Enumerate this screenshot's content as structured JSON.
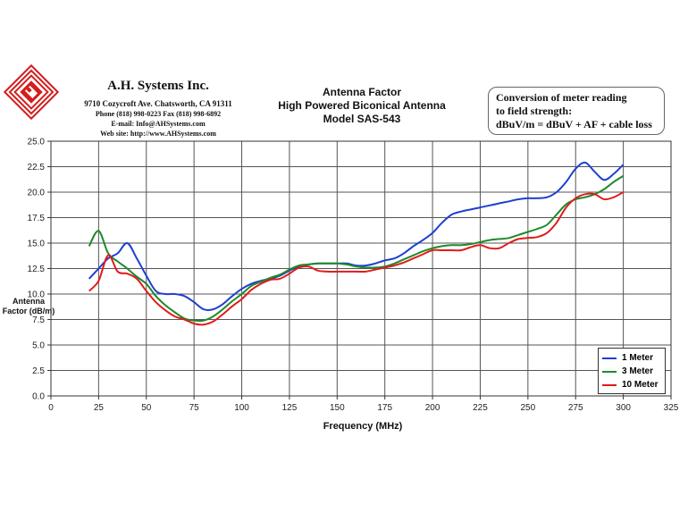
{
  "header": {
    "company_name": "A.H. Systems Inc.",
    "address": "9710 Cozycroft Ave. Chatsworth, CA 91311",
    "phone": "Phone (818) 998-0223 Fax (818) 998-6892",
    "email": "E-mail: Info@AHSystems.com",
    "website": "Web site: http://www.AHSystems.com"
  },
  "conversion_box": {
    "line1": "Conversion of meter reading",
    "line2": "to field strength:",
    "line3": "dBuV/m = dBuV + AF + cable loss"
  },
  "colors": {
    "1 Meter": "#1f3fd0",
    "3 Meter": "#1e8a2a",
    "10 Meter": "#e01b1b"
  },
  "chart_data": {
    "type": "line",
    "title": "Antenna Factor",
    "subtitle1": "High Powered Biconical Antenna",
    "subtitle2": "Model SAS-543",
    "xlabel": "Frequency (MHz)",
    "ylabel_line1": "Antenna",
    "ylabel_line2": "Factor (dB/m)",
    "xlim": [
      0,
      325
    ],
    "ylim": [
      0,
      25
    ],
    "xticks": [
      "0",
      "25",
      "50",
      "75",
      "100",
      "125",
      "150",
      "175",
      "200",
      "225",
      "250",
      "275",
      "300",
      "325"
    ],
    "yticks": [
      "0.0",
      "2.5",
      "5.0",
      "7.5",
      "10.0",
      "12.5",
      "15.0",
      "17.5",
      "20.0",
      "22.5",
      "25.0"
    ],
    "grid": true,
    "legend_position": "bottom-right",
    "series": [
      {
        "name": "1 Meter",
        "x": [
          20,
          25,
          30,
          35,
          40,
          45,
          50,
          55,
          60,
          65,
          70,
          75,
          80,
          85,
          90,
          95,
          100,
          105,
          110,
          115,
          120,
          125,
          130,
          135,
          140,
          145,
          150,
          155,
          160,
          165,
          170,
          175,
          180,
          185,
          190,
          195,
          200,
          205,
          210,
          215,
          220,
          225,
          230,
          235,
          240,
          245,
          250,
          255,
          260,
          265,
          270,
          275,
          280,
          285,
          290,
          295,
          300
        ],
        "y": [
          11.5,
          12.5,
          13.5,
          14.0,
          15.0,
          13.5,
          11.8,
          10.3,
          10.0,
          10.0,
          9.8,
          9.2,
          8.5,
          8.5,
          9.0,
          9.8,
          10.5,
          11.0,
          11.3,
          11.5,
          11.8,
          12.3,
          12.7,
          12.9,
          13.0,
          13.0,
          13.0,
          13.0,
          12.8,
          12.8,
          13.0,
          13.3,
          13.5,
          14.0,
          14.7,
          15.3,
          16.0,
          17.0,
          17.8,
          18.1,
          18.3,
          18.5,
          18.7,
          18.9,
          19.1,
          19.3,
          19.4,
          19.4,
          19.5,
          20.0,
          21.0,
          22.3,
          22.9,
          22.0,
          21.2,
          21.8,
          22.7
        ]
      },
      {
        "name": "3 Meter",
        "x": [
          20,
          25,
          30,
          35,
          40,
          45,
          50,
          55,
          60,
          65,
          70,
          75,
          80,
          85,
          90,
          95,
          100,
          105,
          110,
          115,
          120,
          125,
          130,
          135,
          140,
          145,
          150,
          155,
          160,
          165,
          170,
          175,
          180,
          185,
          190,
          195,
          200,
          205,
          210,
          215,
          220,
          225,
          230,
          235,
          240,
          245,
          250,
          255,
          260,
          265,
          270,
          275,
          280,
          285,
          290,
          295,
          300
        ],
        "y": [
          14.7,
          16.2,
          14.0,
          13.2,
          12.5,
          11.7,
          11.0,
          9.8,
          8.9,
          8.2,
          7.6,
          7.4,
          7.4,
          7.8,
          8.5,
          9.3,
          10.0,
          10.8,
          11.2,
          11.6,
          11.9,
          12.4,
          12.8,
          12.9,
          13.0,
          13.0,
          13.0,
          12.9,
          12.7,
          12.6,
          12.6,
          12.7,
          13.0,
          13.4,
          13.8,
          14.2,
          14.5,
          14.7,
          14.8,
          14.8,
          14.9,
          15.1,
          15.3,
          15.4,
          15.5,
          15.8,
          16.1,
          16.4,
          16.8,
          17.8,
          18.8,
          19.3,
          19.5,
          19.8,
          20.3,
          21.0,
          21.6
        ]
      },
      {
        "name": "10 Meter",
        "x": [
          20,
          25,
          30,
          35,
          40,
          45,
          50,
          55,
          60,
          65,
          70,
          75,
          80,
          85,
          90,
          95,
          100,
          105,
          110,
          115,
          120,
          125,
          130,
          135,
          140,
          145,
          150,
          155,
          160,
          165,
          170,
          175,
          180,
          185,
          190,
          195,
          200,
          205,
          210,
          215,
          220,
          225,
          230,
          235,
          240,
          245,
          250,
          255,
          260,
          265,
          270,
          275,
          280,
          285,
          290,
          295,
          300
        ],
        "y": [
          10.3,
          11.3,
          13.8,
          12.2,
          12.0,
          11.5,
          10.3,
          9.2,
          8.4,
          7.8,
          7.5,
          7.1,
          7.0,
          7.3,
          8.0,
          8.8,
          9.5,
          10.4,
          11.0,
          11.4,
          11.5,
          12.0,
          12.6,
          12.7,
          12.3,
          12.2,
          12.2,
          12.2,
          12.2,
          12.2,
          12.4,
          12.6,
          12.8,
          13.1,
          13.5,
          13.9,
          14.3,
          14.3,
          14.3,
          14.3,
          14.6,
          14.8,
          14.5,
          14.5,
          15.0,
          15.4,
          15.5,
          15.6,
          16.0,
          17.0,
          18.5,
          19.4,
          19.8,
          19.8,
          19.3,
          19.5,
          20.0
        ]
      }
    ]
  }
}
